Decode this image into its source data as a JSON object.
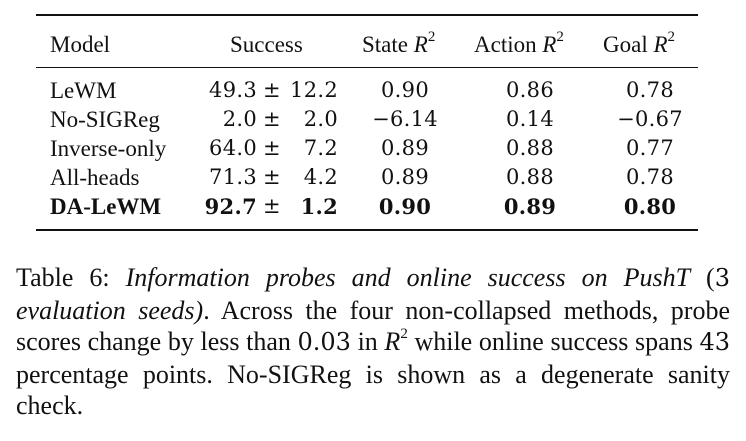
{
  "table": {
    "headers": {
      "model": "Model",
      "success": "Success",
      "state_prefix": "State ",
      "action_prefix": "Action ",
      "goal_prefix": "Goal ",
      "r_symbol": "R",
      "r_exponent": "2"
    },
    "pm_symbol": "±",
    "rows": [
      {
        "model": "LeWM",
        "success_mean": "49.3",
        "success_std": "12.2",
        "state_r2": "0.90",
        "action_r2": "0.86",
        "goal_r2": "0.78",
        "bold": false
      },
      {
        "model": "No-SIGReg",
        "success_mean": "2.0",
        "success_std": "2.0",
        "state_r2": "−6.14",
        "action_r2": "0.14",
        "goal_r2": "−0.67",
        "bold": false
      },
      {
        "model": "Inverse-only",
        "success_mean": "64.0",
        "success_std": "7.2",
        "state_r2": "0.89",
        "action_r2": "0.88",
        "goal_r2": "0.77",
        "bold": false
      },
      {
        "model": "All-heads",
        "success_mean": "71.3",
        "success_std": "4.2",
        "state_r2": "0.89",
        "action_r2": "0.88",
        "goal_r2": "0.78",
        "bold": false
      },
      {
        "model": "DA-LeWM",
        "success_mean": "92.7",
        "success_std": "1.2",
        "state_r2": "0.90",
        "action_r2": "0.89",
        "goal_r2": "0.80",
        "bold": true
      }
    ]
  },
  "caption": {
    "label": "Table 6:",
    "title": "Information probes and online success on PushT",
    "paren_open": " (",
    "seeds_num": "3",
    "seeds_text": "evaluation seeds)",
    "text_a": ". Across the four non-collapsed methods, probe scores change by less than ",
    "delta": "0.03",
    "text_b": " in ",
    "r_symbol": "R",
    "r_exponent": "2",
    "text_c": " while online success spans ",
    "spans_num": "43",
    "text_d": " percentage points. No-SIGReg is shown as a degenerate sanity check."
  }
}
